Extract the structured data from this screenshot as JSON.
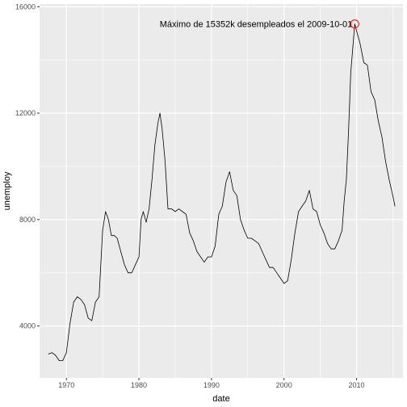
{
  "chart_data": {
    "type": "line",
    "xlabel": "date",
    "ylabel": "unemploy",
    "xlim": [
      1966.3,
      2016.4
    ],
    "ylim": [
      2050,
      16100
    ],
    "x_ticks": [
      1970,
      1980,
      1990,
      2000,
      2010
    ],
    "y_ticks": [
      4000,
      8000,
      12000,
      16000
    ],
    "grid": true,
    "colors": {
      "panel": "#ebebeb",
      "grid_major": "#ffffff",
      "line": "#000000",
      "highlight": "#ff0000"
    },
    "annotation": {
      "text": "Máximo de 15352k desempleados el 2009-10-01",
      "x": 2009.75,
      "y": 15352
    },
    "series": [
      {
        "x": [
          1967.5,
          1968.0,
          1968.5,
          1969.0,
          1969.5,
          1970.0,
          1970.5,
          1971.0,
          1971.5,
          1972.0,
          1972.5,
          1973.0,
          1973.5,
          1974.0,
          1974.5,
          1975.0,
          1975.4,
          1975.8,
          1976.2,
          1976.6,
          1977.0,
          1977.5,
          1978.0,
          1978.5,
          1979.0,
          1979.5,
          1980.0,
          1980.3,
          1980.6,
          1981.0,
          1981.4,
          1981.8,
          1982.2,
          1982.6,
          1982.9,
          1983.2,
          1983.6,
          1984.0,
          1984.5,
          1985.0,
          1985.5,
          1986.0,
          1986.5,
          1987.0,
          1987.5,
          1988.0,
          1988.5,
          1989.0,
          1989.5,
          1990.0,
          1990.5,
          1991.0,
          1991.5,
          1992.0,
          1992.5,
          1993.0,
          1993.5,
          1994.0,
          1994.5,
          1995.0,
          1995.5,
          1996.0,
          1996.5,
          1997.0,
          1997.5,
          1998.0,
          1998.5,
          1999.0,
          1999.5,
          2000.0,
          2000.5,
          2001.0,
          2001.5,
          2002.0,
          2002.5,
          2003.0,
          2003.5,
          2004.0,
          2004.5,
          2005.0,
          2005.5,
          2006.0,
          2006.5,
          2007.0,
          2007.5,
          2008.0,
          2008.3,
          2008.6,
          2008.9,
          2009.2,
          2009.5,
          2009.75,
          2010.0,
          2010.5,
          2011.0,
          2011.5,
          2012.0,
          2012.5,
          2013.0,
          2013.5,
          2014.0,
          2014.5,
          2015.0,
          2015.3
        ],
        "y": [
          2944,
          3000,
          2900,
          2700,
          2700,
          3000,
          4100,
          4900,
          5100,
          5000,
          4800,
          4300,
          4200,
          4900,
          5100,
          7600,
          8300,
          8000,
          7400,
          7400,
          7300,
          6800,
          6300,
          6000,
          6000,
          6300,
          6600,
          8000,
          8300,
          7900,
          8400,
          9500,
          10800,
          11600,
          12000,
          11400,
          10200,
          8400,
          8400,
          8300,
          8400,
          8300,
          8200,
          7500,
          7200,
          6800,
          6600,
          6400,
          6600,
          6600,
          7000,
          8200,
          8500,
          9400,
          9800,
          9100,
          8900,
          8000,
          7600,
          7300,
          7300,
          7200,
          7100,
          6800,
          6500,
          6200,
          6200,
          6000,
          5800,
          5600,
          5700,
          6500,
          7500,
          8300,
          8500,
          8700,
          9100,
          8400,
          8300,
          7800,
          7500,
          7100,
          6900,
          6900,
          7200,
          7600,
          8700,
          9500,
          11300,
          13500,
          14500,
          15352,
          15100,
          14600,
          13900,
          13800,
          12800,
          12500,
          11700,
          11100,
          10200,
          9500,
          8900,
          8500
        ]
      }
    ]
  }
}
